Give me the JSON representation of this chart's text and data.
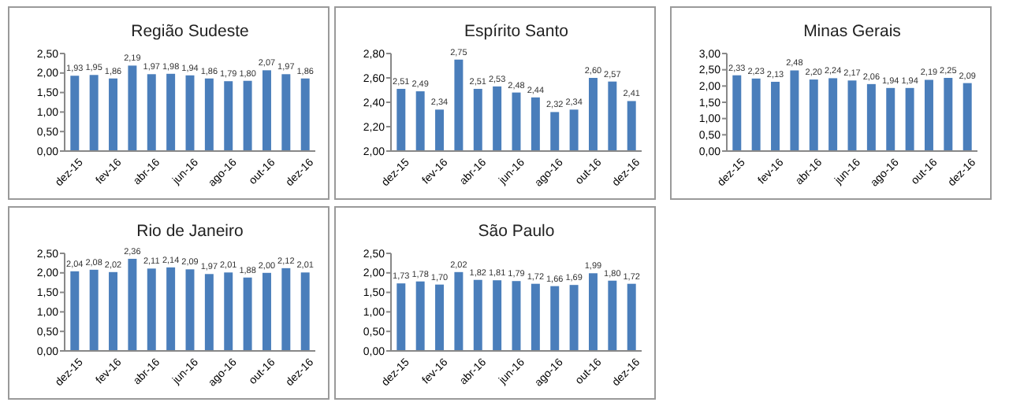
{
  "chart_data": [
    {
      "type": "bar",
      "title": "Região Sudeste",
      "categories": [
        "dez-15",
        null,
        "fev-16",
        null,
        "abr-16",
        null,
        "jun-16",
        null,
        "ago-16",
        null,
        "out-16",
        null,
        "dez-16"
      ],
      "values": [
        1.93,
        1.95,
        1.86,
        2.19,
        1.97,
        1.98,
        1.94,
        1.86,
        1.79,
        1.8,
        2.07,
        1.97,
        1.86
      ],
      "value_labels": [
        "1,93",
        "1,95",
        "1,86",
        "2,19",
        "1,97",
        "1,98",
        "1,94",
        "1,86",
        "1,79",
        "1,80",
        "2,07",
        "1,97",
        "1,86"
      ],
      "color": "#4a7ebb",
      "ylim": [
        0,
        2.5
      ],
      "yticks": [
        {
          "value": 0,
          "label": "0,00"
        },
        {
          "value": 0.5,
          "label": "0,50"
        },
        {
          "value": 1,
          "label": "1,00"
        },
        {
          "value": 1.5,
          "label": "1,50"
        },
        {
          "value": 2,
          "label": "2,00"
        },
        {
          "value": 2.5,
          "label": "2,50"
        }
      ]
    },
    {
      "type": "bar",
      "title": "Espírito Santo",
      "categories": [
        "dez-15",
        null,
        "fev-16",
        null,
        "abr-16",
        null,
        "jun-16",
        null,
        "ago-16",
        null,
        "out-16",
        null,
        "dez-16"
      ],
      "values": [
        2.51,
        2.49,
        2.34,
        2.75,
        2.51,
        2.53,
        2.48,
        2.44,
        2.32,
        2.34,
        2.6,
        2.57,
        2.41
      ],
      "value_labels": [
        "2,51",
        "2,49",
        "2,34",
        "2,75",
        "2,51",
        "2,53",
        "2,48",
        "2,44",
        "2,32",
        "2,34",
        "2,60",
        "2,57",
        "2,41"
      ],
      "color": "#4a7ebb",
      "ylim": [
        2,
        2.8
      ],
      "yticks": [
        {
          "value": 2,
          "label": "2,00"
        },
        {
          "value": 2.2,
          "label": "2,20"
        },
        {
          "value": 2.4,
          "label": "2,40"
        },
        {
          "value": 2.6,
          "label": "2,60"
        },
        {
          "value": 2.8,
          "label": "2,80"
        }
      ]
    },
    {
      "type": "bar",
      "title": "Minas Gerais",
      "categories": [
        "dez-15",
        null,
        "fev-16",
        null,
        "abr-16",
        null,
        "jun-16",
        null,
        "ago-16",
        null,
        "out-16",
        null,
        "dez-16"
      ],
      "values": [
        2.33,
        2.23,
        2.13,
        2.48,
        2.2,
        2.24,
        2.17,
        2.06,
        1.94,
        1.94,
        2.19,
        2.25,
        2.09
      ],
      "value_labels": [
        "2,33",
        "2,23",
        "2,13",
        "2,48",
        "2,20",
        "2,24",
        "2,17",
        "2,06",
        "1,94",
        "1,94",
        "2,19",
        "2,25",
        "2,09"
      ],
      "color": "#4a7ebb",
      "ylim": [
        0,
        3
      ],
      "yticks": [
        {
          "value": 0,
          "label": "0,00"
        },
        {
          "value": 0.5,
          "label": "0,50"
        },
        {
          "value": 1,
          "label": "1,00"
        },
        {
          "value": 1.5,
          "label": "1,50"
        },
        {
          "value": 2,
          "label": "2,00"
        },
        {
          "value": 2.5,
          "label": "2,50"
        },
        {
          "value": 3,
          "label": "3,00"
        }
      ]
    },
    {
      "type": "bar",
      "title": "Rio de Janeiro",
      "categories": [
        "dez-15",
        null,
        "fev-16",
        null,
        "abr-16",
        null,
        "jun-16",
        null,
        "ago-16",
        null,
        "out-16",
        null,
        "dez-16"
      ],
      "values": [
        2.04,
        2.08,
        2.02,
        2.36,
        2.11,
        2.14,
        2.09,
        1.97,
        2.01,
        1.88,
        2.0,
        2.12,
        2.01
      ],
      "value_labels": [
        "2,04",
        "2,08",
        "2,02",
        "2,36",
        "2,11",
        "2,14",
        "2,09",
        "1,97",
        "2,01",
        "1,88",
        "2,00",
        "2,12",
        "2,01"
      ],
      "color": "#4a7ebb",
      "ylim": [
        0,
        2.5
      ],
      "yticks": [
        {
          "value": 0,
          "label": "0,00"
        },
        {
          "value": 0.5,
          "label": "0,50"
        },
        {
          "value": 1,
          "label": "1,00"
        },
        {
          "value": 1.5,
          "label": "1,50"
        },
        {
          "value": 2,
          "label": "2,00"
        },
        {
          "value": 2.5,
          "label": "2,50"
        }
      ]
    },
    {
      "type": "bar",
      "title": "São Paulo",
      "categories": [
        "dez-15",
        null,
        "fev-16",
        null,
        "abr-16",
        null,
        "jun-16",
        null,
        "ago-16",
        null,
        "out-16",
        null,
        "dez-16"
      ],
      "values": [
        1.73,
        1.78,
        1.7,
        2.02,
        1.82,
        1.81,
        1.79,
        1.72,
        1.66,
        1.69,
        1.99,
        1.8,
        1.72
      ],
      "value_labels": [
        "1,73",
        "1,78",
        "1,70",
        "2,02",
        "1,82",
        "1,81",
        "1,79",
        "1,72",
        "1,66",
        "1,69",
        "1,99",
        "1,80",
        "1,72"
      ],
      "color": "#4a7ebb",
      "ylim": [
        0,
        2.5
      ],
      "yticks": [
        {
          "value": 0,
          "label": "0,00"
        },
        {
          "value": 0.5,
          "label": "0,50"
        },
        {
          "value": 1,
          "label": "1,00"
        },
        {
          "value": 1.5,
          "label": "1,50"
        },
        {
          "value": 2,
          "label": "2,00"
        },
        {
          "value": 2.5,
          "label": "2,50"
        }
      ]
    }
  ]
}
